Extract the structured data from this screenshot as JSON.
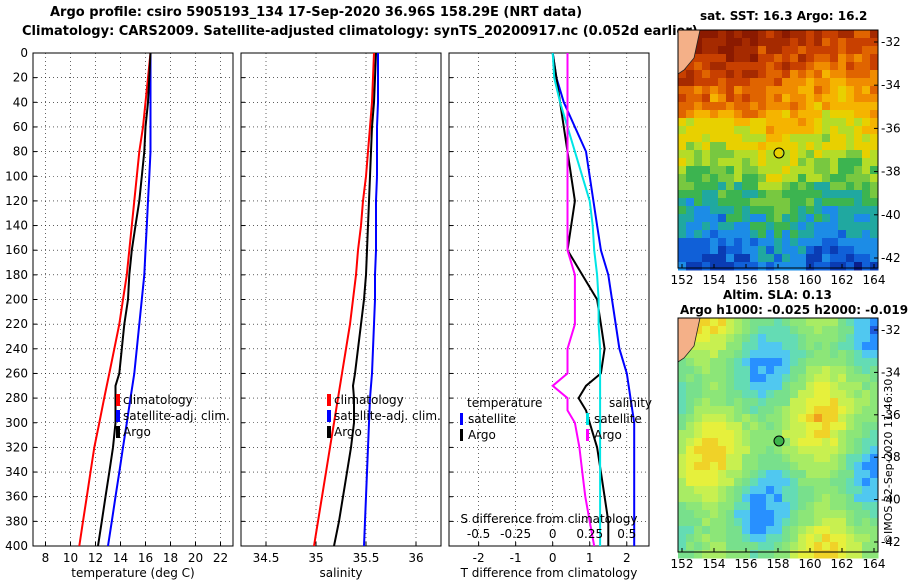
{
  "header": {
    "line1": "Argo profile: csiro 5905193_134 17-Sep-2020 36.96S 158.29E (NRT data)",
    "line2": "Climatology: CARS2009. Satellite-adjusted climatology: synTS_20200917.nc (0.052d earlier)"
  },
  "map_top": {
    "title": "sat. SST: 16.3 Argo: 16.2",
    "lat_ticks": [
      "-32",
      "-34",
      "-36",
      "-38",
      "-40",
      "-42"
    ],
    "lon_ticks": [
      "152",
      "154",
      "156",
      "158",
      "160",
      "162",
      "164"
    ]
  },
  "map_bottom": {
    "title1": "Altim. SLA: 0.13",
    "title2": "Argo h1000: -0.025 h2000: -0.019",
    "lat_ticks": [
      "-32",
      "-34",
      "-36",
      "-38",
      "-40",
      "-42"
    ],
    "lon_ticks": [
      "152",
      "154",
      "156",
      "158",
      "160",
      "162",
      "164"
    ]
  },
  "stamp": "©IMOS 22-Sep-2020 11:46:30",
  "colors": {
    "climatology": "#ff0000",
    "satellite": "#0000ff",
    "argo": "#000000",
    "sal_sat": "#00e5e5",
    "sal_clim": "#ff00ff"
  },
  "chart_data": [
    {
      "type": "line",
      "xlabel": "temperature (deg C)",
      "ylabel": "depth",
      "xlim": [
        7,
        23
      ],
      "ylim": [
        400,
        0
      ],
      "xticks": [
        "8",
        "10",
        "12",
        "14",
        "16",
        "18",
        "20",
        "22"
      ],
      "yticks": [
        "0",
        "20",
        "40",
        "60",
        "80",
        "100",
        "120",
        "140",
        "160",
        "180",
        "200",
        "220",
        "240",
        "260",
        "280",
        "300",
        "320",
        "340",
        "360",
        "380",
        "400"
      ],
      "legend": [
        "climatology",
        "satellite-adj. clim.",
        "Argo"
      ],
      "series": [
        {
          "name": "climatology",
          "depth": [
            0,
            20,
            40,
            60,
            80,
            100,
            120,
            140,
            160,
            180,
            200,
            220,
            240,
            260,
            280,
            300,
            320,
            340,
            360,
            380,
            400
          ],
          "values": [
            16.4,
            16.2,
            16.0,
            15.8,
            15.5,
            15.3,
            15.1,
            14.9,
            14.7,
            14.5,
            14.2,
            13.9,
            13.5,
            13.1,
            12.7,
            12.3,
            11.9,
            11.6,
            11.3,
            11.0,
            10.7
          ]
        },
        {
          "name": "satellite-adj. clim.",
          "depth": [
            0,
            20,
            40,
            60,
            80,
            100,
            120,
            140,
            160,
            180,
            200,
            220,
            240,
            260,
            280,
            300,
            320,
            340,
            360,
            380,
            400
          ],
          "values": [
            16.4,
            16.4,
            16.4,
            16.4,
            16.4,
            16.3,
            16.2,
            16.1,
            16.0,
            15.9,
            15.7,
            15.5,
            15.3,
            15.1,
            14.8,
            14.5,
            14.2,
            13.9,
            13.6,
            13.3,
            13.0
          ]
        },
        {
          "name": "Argo",
          "depth": [
            0,
            20,
            40,
            60,
            80,
            100,
            120,
            140,
            160,
            180,
            200,
            220,
            240,
            260,
            270,
            280,
            290,
            300,
            320,
            340,
            360,
            380,
            400
          ],
          "values": [
            16.4,
            16.3,
            16.2,
            16.0,
            15.9,
            15.7,
            15.5,
            15.2,
            14.9,
            14.7,
            14.6,
            14.3,
            14.1,
            13.9,
            13.6,
            13.6,
            13.6,
            13.6,
            13.4,
            13.1,
            12.8,
            12.5,
            12.2
          ]
        }
      ]
    },
    {
      "type": "line",
      "xlabel": "salinity",
      "ylabel": "depth",
      "xlim": [
        34.25,
        36.25
      ],
      "ylim": [
        400,
        0
      ],
      "xticks": [
        "34.5",
        "35",
        "35.5",
        "36"
      ],
      "legend": [
        "climatology",
        "satellite-adj. clim.",
        "Argo"
      ],
      "series": [
        {
          "name": "climatology",
          "depth": [
            0,
            20,
            40,
            60,
            80,
            100,
            120,
            140,
            160,
            180,
            200,
            220,
            240,
            260,
            280,
            300,
            320,
            340,
            360,
            380,
            400
          ],
          "values": [
            35.58,
            35.57,
            35.56,
            35.54,
            35.52,
            35.5,
            35.47,
            35.45,
            35.42,
            35.4,
            35.37,
            35.34,
            35.3,
            35.26,
            35.22,
            35.18,
            35.14,
            35.1,
            35.06,
            35.02,
            34.98
          ]
        },
        {
          "name": "satellite-adj. clim.",
          "depth": [
            0,
            20,
            40,
            60,
            80,
            100,
            120,
            140,
            160,
            180,
            200,
            220,
            240,
            260,
            280,
            300,
            320,
            340,
            360,
            380,
            400
          ],
          "values": [
            35.62,
            35.62,
            35.62,
            35.61,
            35.61,
            35.61,
            35.6,
            35.6,
            35.6,
            35.59,
            35.59,
            35.58,
            35.57,
            35.56,
            35.54,
            35.53,
            35.52,
            35.51,
            35.5,
            35.49,
            35.48
          ]
        },
        {
          "name": "Argo",
          "depth": [
            0,
            20,
            40,
            60,
            80,
            100,
            120,
            140,
            160,
            180,
            200,
            220,
            240,
            260,
            270,
            280,
            290,
            300,
            320,
            340,
            360,
            380,
            400
          ],
          "values": [
            35.6,
            35.59,
            35.58,
            35.56,
            35.55,
            35.54,
            35.53,
            35.52,
            35.51,
            35.5,
            35.48,
            35.45,
            35.42,
            35.39,
            35.37,
            35.38,
            35.38,
            35.38,
            35.35,
            35.31,
            35.27,
            35.23,
            35.18
          ]
        }
      ]
    },
    {
      "type": "line",
      "xlabel": "T difference from climatology",
      "xlabel_top": "S difference from climatology",
      "xlim": [
        -2.8,
        2.6
      ],
      "ylim": [
        400,
        0
      ],
      "xticks": [
        "-2",
        "-1",
        "0",
        "1",
        "2"
      ],
      "xticks_top": [
        "-0.5",
        "-0.25",
        "0",
        "0.25",
        "0.5"
      ],
      "legend_left": {
        "title": "temperature",
        "items": [
          "satellite",
          "Argo"
        ]
      },
      "legend_right": {
        "title": "salinity",
        "items": [
          "satellite",
          "Argo"
        ]
      },
      "series": [
        {
          "name": "temperature satellite",
          "depth": [
            0,
            20,
            40,
            60,
            80,
            100,
            120,
            140,
            160,
            180,
            200,
            220,
            240,
            260,
            280,
            300,
            320,
            340,
            360,
            380,
            400
          ],
          "values": [
            0.0,
            0.1,
            0.3,
            0.6,
            0.9,
            1.0,
            1.1,
            1.2,
            1.3,
            1.5,
            1.6,
            1.7,
            1.8,
            2.0,
            2.1,
            2.2,
            2.2,
            2.2,
            2.2,
            2.2,
            2.2
          ]
        },
        {
          "name": "temperature Argo",
          "depth": [
            0,
            20,
            40,
            60,
            80,
            100,
            120,
            140,
            160,
            180,
            200,
            220,
            240,
            260,
            270,
            280,
            290,
            300,
            320,
            340,
            360,
            380,
            400
          ],
          "values": [
            0.0,
            0.1,
            0.2,
            0.3,
            0.4,
            0.5,
            0.6,
            0.5,
            0.4,
            0.8,
            1.2,
            1.3,
            1.4,
            1.3,
            0.9,
            0.7,
            0.9,
            1.0,
            1.2,
            1.3,
            1.4,
            1.5,
            1.5
          ]
        },
        {
          "name": "salinity satellite",
          "depth": [
            0,
            20,
            40,
            60,
            80,
            100,
            120,
            140,
            160,
            180,
            200,
            220,
            240,
            260,
            280,
            300,
            320,
            340,
            360,
            380,
            400
          ],
          "values": [
            0.0,
            0.01,
            0.05,
            0.1,
            0.15,
            0.2,
            0.25,
            0.27,
            0.28,
            0.3,
            0.31,
            0.31,
            0.32,
            0.32,
            0.32,
            0.32,
            0.32,
            0.32,
            0.32,
            0.32,
            0.32
          ]
        },
        {
          "name": "salinity Argo",
          "depth": [
            0,
            20,
            40,
            60,
            80,
            100,
            120,
            140,
            160,
            180,
            200,
            220,
            240,
            260,
            270,
            280,
            290,
            300,
            320,
            340,
            360,
            380,
            400
          ],
          "values": [
            0.1,
            0.1,
            0.1,
            0.1,
            0.1,
            0.1,
            0.1,
            0.1,
            0.1,
            0.15,
            0.15,
            0.15,
            0.1,
            0.1,
            0.0,
            0.1,
            0.1,
            0.15,
            0.18,
            0.2,
            0.22,
            0.25,
            0.28
          ]
        }
      ]
    }
  ]
}
